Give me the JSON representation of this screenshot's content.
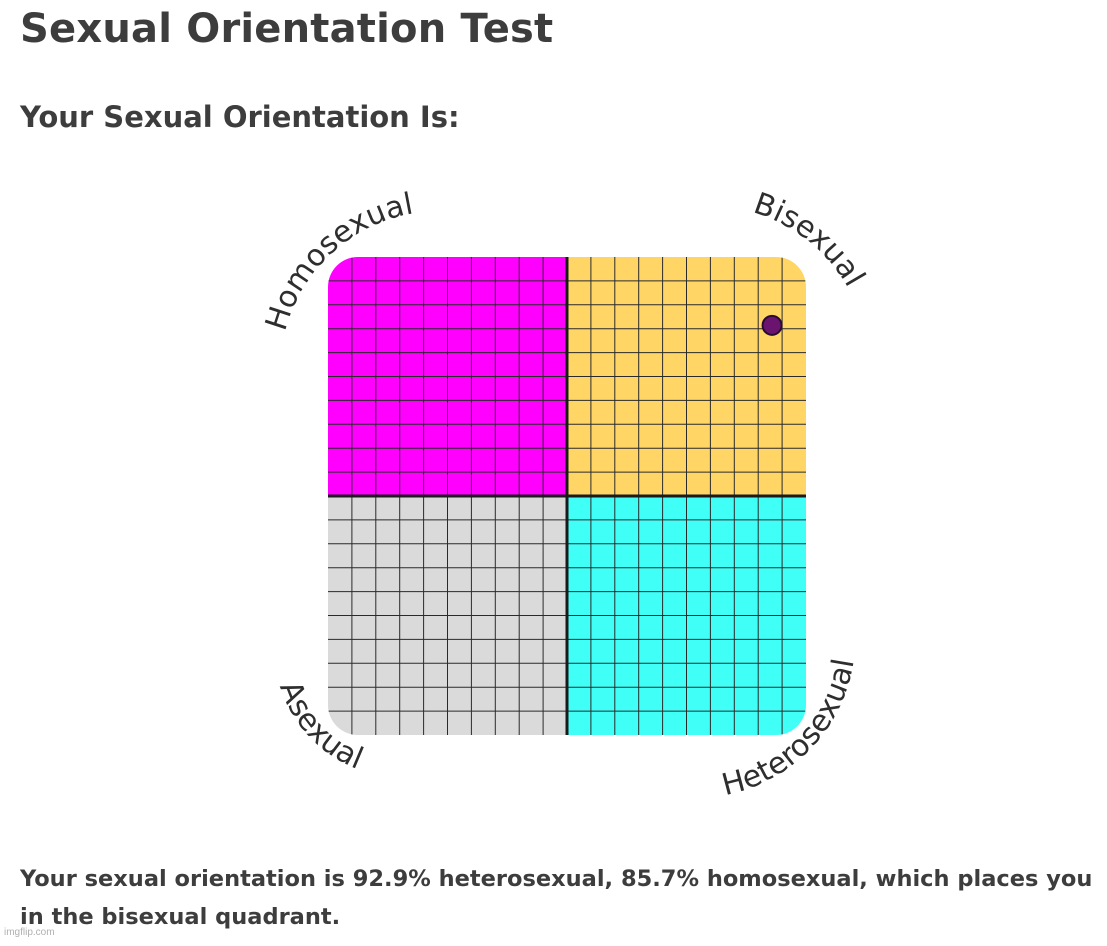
{
  "page": {
    "title": "Sexual Orientation Test",
    "subtitle": "Your Sexual Orientation Is:"
  },
  "chart": {
    "quadrants": {
      "top_left": {
        "label": "Homosexual",
        "color": "#ff00ff"
      },
      "top_right": {
        "label": "Bisexual",
        "color": "#ffd566"
      },
      "bottom_left": {
        "label": "Asexual",
        "color": "#dadada"
      },
      "bottom_right": {
        "label": "Heterosexual",
        "color": "#40fff7"
      }
    },
    "grid_divisions": 20,
    "marker": {
      "heterosexual_percent": 92.9,
      "homosexual_percent": 85.7,
      "color": "#6a1470"
    }
  },
  "result": {
    "text": "Your sexual orientation is 92.9% heterosexual, 85.7% homosexual, which places you in the bisexual quadrant."
  },
  "watermark": "imgflip.com"
}
